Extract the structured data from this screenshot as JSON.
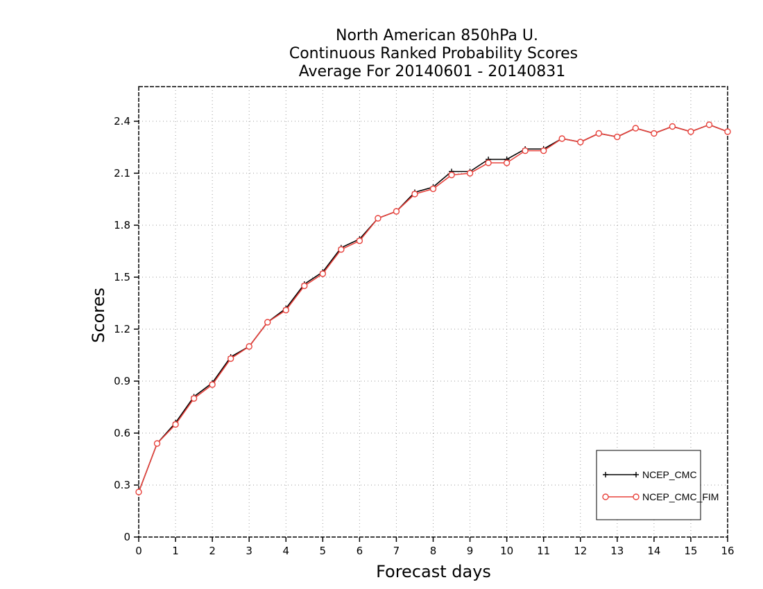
{
  "chart_data": {
    "type": "line",
    "title": [
      "North American 850hPa U.",
      "Continuous Ranked Probability Scores",
      "Average For 20140601 - 20140831"
    ],
    "xlabel": "Forecast days",
    "ylabel": "Scores",
    "xlim": [
      0,
      16
    ],
    "ylim": [
      0,
      2.6
    ],
    "xticks": [
      "0",
      "1",
      "2",
      "3",
      "4",
      "5",
      "6",
      "7",
      "8",
      "9",
      "10",
      "11",
      "12",
      "13",
      "14",
      "15",
      "16"
    ],
    "yticks": [
      "0",
      "0.3",
      "0.6",
      "0.9",
      "1.2",
      "1.5",
      "1.8",
      "2.1",
      "2.4"
    ],
    "grid": true,
    "legend_position": "bottom-right",
    "x": [
      0,
      0.5,
      1,
      1.5,
      2,
      2.5,
      3,
      3.5,
      4,
      4.5,
      5,
      5.5,
      6,
      6.5,
      7,
      7.5,
      8,
      8.5,
      9,
      9.5,
      10,
      10.5,
      11,
      11.5,
      12,
      12.5,
      13,
      13.5,
      14,
      14.5,
      15,
      15.5,
      16
    ],
    "series": [
      {
        "name": "NCEP_CMC",
        "color": "#000000",
        "marker": "plus",
        "values": [
          0.26,
          0.54,
          0.66,
          0.81,
          0.89,
          1.04,
          1.1,
          1.24,
          1.32,
          1.46,
          1.53,
          1.67,
          1.72,
          1.84,
          1.88,
          1.99,
          2.02,
          2.11,
          2.11,
          2.18,
          2.18,
          2.24,
          2.24,
          2.3,
          2.28,
          2.33,
          2.31,
          2.36,
          2.33,
          2.37,
          2.34,
          2.38,
          2.34
        ]
      },
      {
        "name": "NCEP_CMC_FIM",
        "color": "#e8403a",
        "marker": "circle",
        "values": [
          0.26,
          0.54,
          0.65,
          0.8,
          0.88,
          1.03,
          1.1,
          1.24,
          1.31,
          1.45,
          1.52,
          1.66,
          1.71,
          1.84,
          1.88,
          1.98,
          2.01,
          2.09,
          2.1,
          2.16,
          2.16,
          2.23,
          2.23,
          2.3,
          2.28,
          2.33,
          2.31,
          2.36,
          2.33,
          2.37,
          2.34,
          2.38,
          2.34
        ]
      }
    ]
  }
}
